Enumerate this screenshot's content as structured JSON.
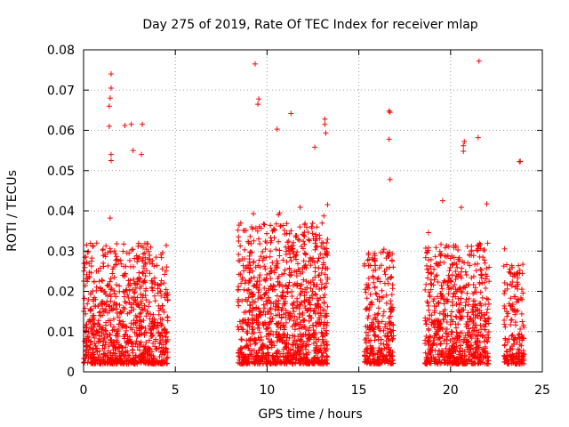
{
  "chart_data": {
    "type": "scatter",
    "title": "Day 275 of 2019, Rate Of TEC Index for receiver mlap",
    "xlabel": "GPS time / hours",
    "ylabel": "ROTI / TECUs",
    "xlim": [
      0,
      25
    ],
    "ylim": [
      0,
      0.08
    ],
    "xticks": [
      0,
      5,
      10,
      15,
      20,
      25
    ],
    "xtick_labels": [
      "0",
      "5",
      "10",
      "15",
      "20",
      "25"
    ],
    "yticks": [
      0,
      0.01,
      0.02,
      0.03,
      0.04,
      0.05,
      0.06,
      0.07,
      0.08
    ],
    "ytick_labels": [
      "0",
      "0.01",
      "0.02",
      "0.03",
      "0.04",
      "0.05",
      "0.06",
      "0.07",
      "0.08"
    ],
    "grid": true,
    "marker": "+",
    "color": "#ff0000",
    "clusters": [
      {
        "x_start": 0.0,
        "x_end": 4.6,
        "typical_max": 0.03,
        "n": 900
      },
      {
        "x_start": 8.4,
        "x_end": 13.3,
        "typical_max": 0.035,
        "n": 1100
      },
      {
        "x_start": 15.3,
        "x_end": 16.9,
        "typical_max": 0.028,
        "n": 300
      },
      {
        "x_start": 18.6,
        "x_end": 22.1,
        "typical_max": 0.03,
        "n": 700
      },
      {
        "x_start": 22.9,
        "x_end": 24.0,
        "typical_max": 0.025,
        "n": 180
      }
    ],
    "notable_points": [
      {
        "x": 1.5,
        "y": 0.074
      },
      {
        "x": 1.5,
        "y": 0.0705
      },
      {
        "x": 1.45,
        "y": 0.068
      },
      {
        "x": 1.4,
        "y": 0.066
      },
      {
        "x": 1.4,
        "y": 0.061
      },
      {
        "x": 2.25,
        "y": 0.0612
      },
      {
        "x": 2.6,
        "y": 0.0615
      },
      {
        "x": 3.2,
        "y": 0.0615
      },
      {
        "x": 2.7,
        "y": 0.055
      },
      {
        "x": 3.15,
        "y": 0.054
      },
      {
        "x": 1.5,
        "y": 0.054
      },
      {
        "x": 1.5,
        "y": 0.0525
      },
      {
        "x": 9.35,
        "y": 0.0765
      },
      {
        "x": 9.55,
        "y": 0.0678
      },
      {
        "x": 9.5,
        "y": 0.0665
      },
      {
        "x": 10.55,
        "y": 0.0603
      },
      {
        "x": 11.3,
        "y": 0.0642
      },
      {
        "x": 13.15,
        "y": 0.0628
      },
      {
        "x": 13.15,
        "y": 0.0615
      },
      {
        "x": 13.2,
        "y": 0.0593
      },
      {
        "x": 12.6,
        "y": 0.0558
      },
      {
        "x": 16.65,
        "y": 0.0648
      },
      {
        "x": 16.7,
        "y": 0.0645
      },
      {
        "x": 16.65,
        "y": 0.0578
      },
      {
        "x": 16.7,
        "y": 0.0478
      },
      {
        "x": 21.55,
        "y": 0.0772
      },
      {
        "x": 21.5,
        "y": 0.0582
      },
      {
        "x": 20.75,
        "y": 0.0572
      },
      {
        "x": 20.7,
        "y": 0.0562
      },
      {
        "x": 20.7,
        "y": 0.0548
      },
      {
        "x": 23.8,
        "y": 0.0523
      },
      {
        "x": 23.75,
        "y": 0.0522
      }
    ]
  }
}
